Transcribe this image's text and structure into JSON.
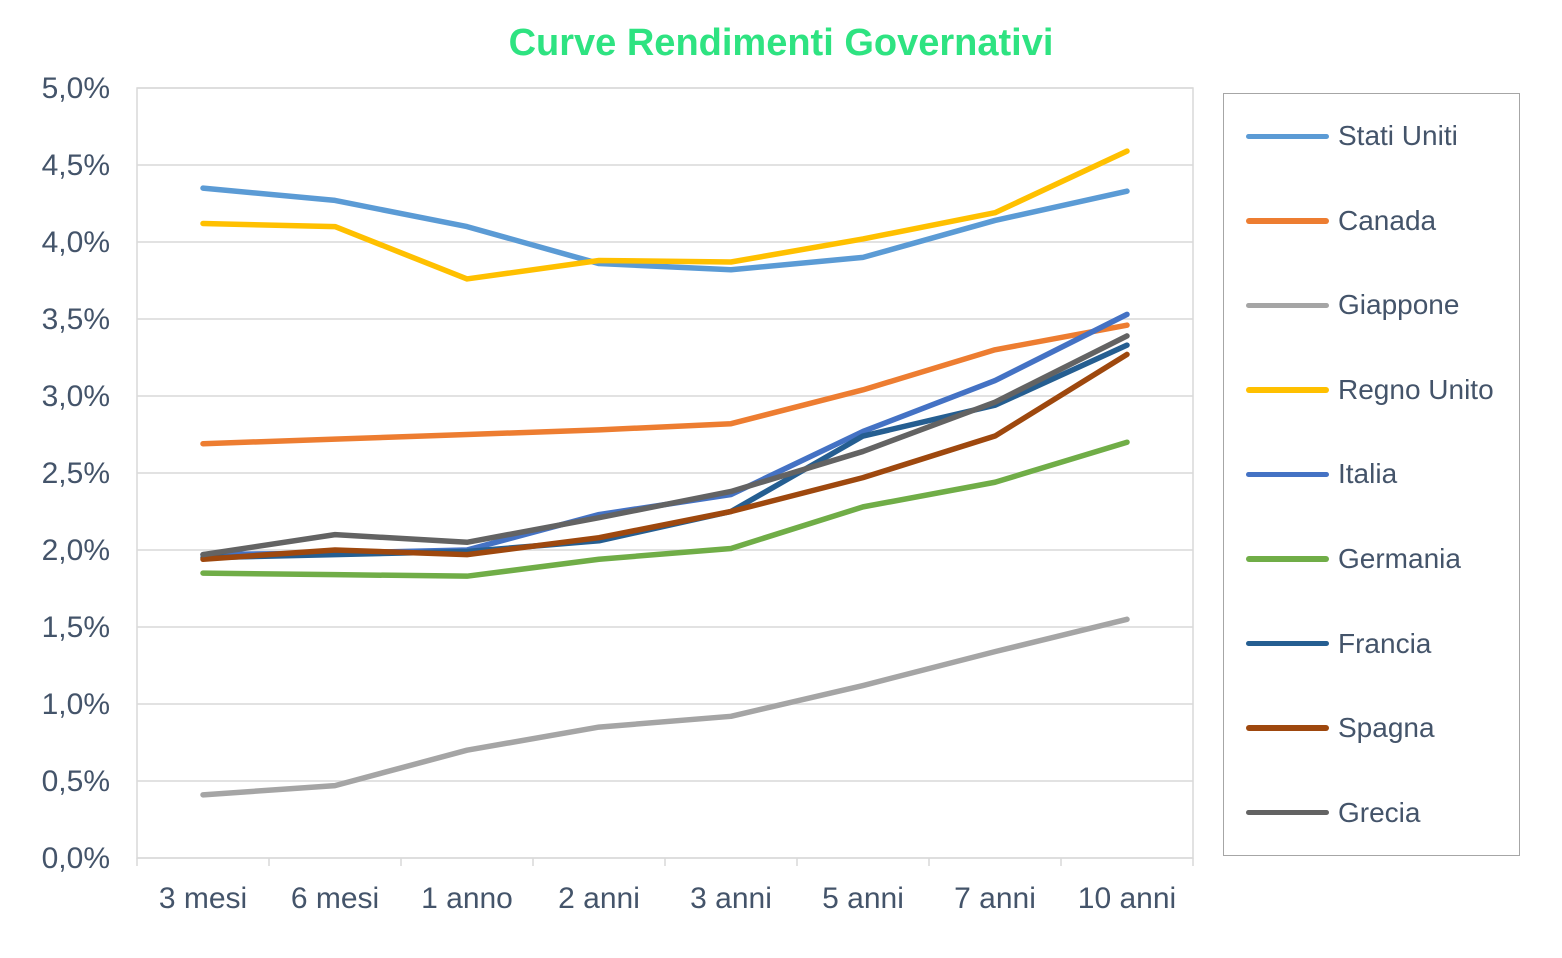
{
  "chart_data": {
    "type": "line",
    "title": "Curve Rendimenti Governativi",
    "categories": [
      "3 mesi",
      "6 mesi",
      "1 anno",
      "2 anni",
      "3 anni",
      "5 anni",
      "7 anni",
      "10 anni"
    ],
    "series": [
      {
        "name": "Stati Uniti",
        "color": "#5B9BD5",
        "values": [
          4.35,
          4.27,
          4.1,
          3.86,
          3.82,
          3.9,
          4.14,
          4.33
        ]
      },
      {
        "name": "Canada",
        "color": "#ED7D31",
        "values": [
          2.69,
          2.72,
          2.75,
          2.78,
          2.82,
          3.04,
          3.3,
          3.46
        ]
      },
      {
        "name": "Giappone",
        "color": "#A5A5A5",
        "values": [
          0.41,
          0.47,
          0.7,
          0.85,
          0.92,
          1.12,
          1.34,
          1.55
        ]
      },
      {
        "name": "Regno Unito",
        "color": "#FFC000",
        "values": [
          4.12,
          4.1,
          3.76,
          3.88,
          3.87,
          4.02,
          4.19,
          4.59
        ]
      },
      {
        "name": "Italia",
        "color": "#4472C4",
        "values": [
          1.97,
          1.98,
          2.0,
          2.23,
          2.36,
          2.77,
          3.1,
          3.53
        ]
      },
      {
        "name": "Germania",
        "color": "#70AD47",
        "values": [
          1.85,
          1.84,
          1.83,
          1.94,
          2.01,
          2.28,
          2.44,
          2.7
        ]
      },
      {
        "name": "Francia",
        "color": "#255E91",
        "values": [
          1.95,
          1.97,
          1.99,
          2.06,
          2.25,
          2.74,
          2.94,
          3.33
        ]
      },
      {
        "name": "Spagna",
        "color": "#9E480E",
        "values": [
          1.94,
          2.0,
          1.97,
          2.08,
          2.25,
          2.47,
          2.74,
          3.27
        ]
      },
      {
        "name": "Grecia",
        "color": "#636363",
        "values": [
          1.97,
          2.1,
          2.05,
          2.21,
          2.38,
          2.64,
          2.96,
          3.39
        ]
      }
    ],
    "ylim": [
      0,
      5
    ],
    "y_tick_step": 0.5,
    "y_tick_labels": [
      "0,0%",
      "0,5%",
      "1,0%",
      "1,5%",
      "2,0%",
      "2,5%",
      "3,0%",
      "3,5%",
      "4,0%",
      "4,5%",
      "5,0%"
    ],
    "grid": true,
    "legend_position": "right"
  },
  "styles": {
    "background": "#FFFFFF",
    "title_color": "#2EE381",
    "axis_text_color": "#44546A",
    "gridline_color": "#D9D9D9",
    "plot_border_color": "#D9D9D9",
    "legend_border_color": "#A6A6A6",
    "series_stroke_width": 5.5
  }
}
